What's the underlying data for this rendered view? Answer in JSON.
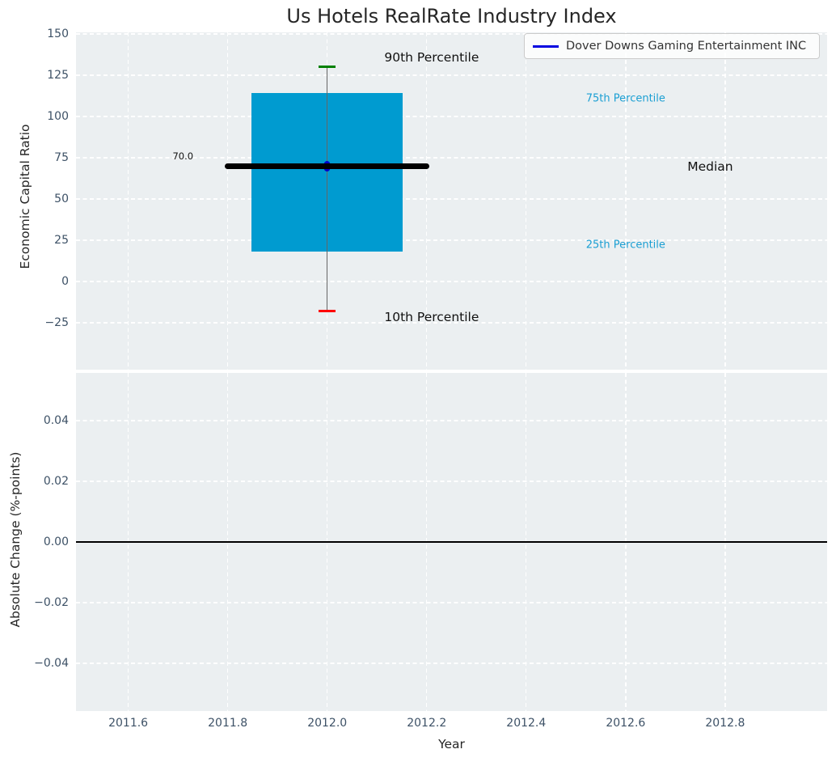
{
  "figure": {
    "background": "#ffffff",
    "plot_background": "#ebeff1",
    "grid_color": "#ffffff",
    "tick_label_color": "#3d5166",
    "text_color": "#262626"
  },
  "chart_data": [
    {
      "type": "boxplot",
      "title": "Us Hotels RealRate Industry Index",
      "ylabel": "Economic Capital Ratio",
      "xlabel": "",
      "xlim": [
        2011.495,
        2013.005
      ],
      "ylim": [
        -53.4,
        151.0
      ],
      "yticks": [
        150,
        125,
        100,
        75,
        50,
        25,
        0,
        -25
      ],
      "ytick_labels": [
        "150",
        "125",
        "100",
        "75",
        "50",
        "25",
        "0",
        "−25"
      ],
      "grid": true,
      "legend": {
        "position": "upper right",
        "entries": [
          {
            "label": "Dover Downs Gaming Entertainment INC",
            "color": "#0000e0",
            "type": "line"
          }
        ]
      },
      "series": [
        {
          "name": "Dover Downs Gaming Entertainment INC",
          "type": "scatter",
          "x": [
            2012.0
          ],
          "y": [
            70.0
          ],
          "color": "#0000cc"
        }
      ],
      "box": {
        "x": 2012.0,
        "p10": -18.0,
        "p25": 18.0,
        "median": 70.0,
        "p75": 114.0,
        "p90": 130.0,
        "median_label": "70.0",
        "box_color": "#009bd0",
        "median_color": "#000000",
        "whisker_color": "#666666",
        "p90_cap_color": "#008000",
        "p10_cap_color": "#ff0000",
        "box_half_width": 0.152,
        "median_half_width": 0.206,
        "cap_half_width": 0.017
      },
      "annotations": [
        {
          "id": "p90-label",
          "text": "90th Percentile",
          "x": 2012.21,
          "y": 136.0,
          "color": "#111111",
          "size": 15.5
        },
        {
          "id": "p75-label",
          "text": "75th Percentile",
          "x": 2012.6,
          "y": 111.0,
          "color": "#1b9fd3",
          "size": 13
        },
        {
          "id": "median-label",
          "text": "Median",
          "x": 2012.77,
          "y": 69.5,
          "color": "#111111",
          "size": 15.5
        },
        {
          "id": "p25-label",
          "text": "25th Percentile",
          "x": 2012.6,
          "y": 22.0,
          "color": "#1b9fd3",
          "size": 13
        },
        {
          "id": "p10-label",
          "text": "10th Percentile",
          "x": 2012.21,
          "y": -21.5,
          "color": "#111111",
          "size": 15.5
        },
        {
          "id": "median-value-label",
          "text": "70.0",
          "x": 2011.71,
          "y": 76.0,
          "color": "#111111",
          "size": 11.5
        }
      ]
    },
    {
      "type": "line",
      "ylabel": "Absolute Change (%-points)",
      "xlabel": "Year",
      "xlim": [
        2011.495,
        2013.005
      ],
      "ylim": [
        -0.0557,
        0.0557
      ],
      "xticks": [
        2011.6,
        2011.8,
        2012.0,
        2012.2,
        2012.4,
        2012.6,
        2012.8
      ],
      "xtick_labels": [
        "2011.6",
        "2011.8",
        "2012.0",
        "2012.2",
        "2012.4",
        "2012.6",
        "2012.8"
      ],
      "yticks": [
        0.04,
        0.02,
        0.0,
        -0.02,
        -0.04
      ],
      "ytick_labels": [
        "0.04",
        "0.02",
        "0.00",
        "−0.02",
        "−0.04"
      ],
      "grid": true,
      "hline": {
        "y": 0.0,
        "color": "#000000",
        "width": 1.8
      }
    }
  ]
}
